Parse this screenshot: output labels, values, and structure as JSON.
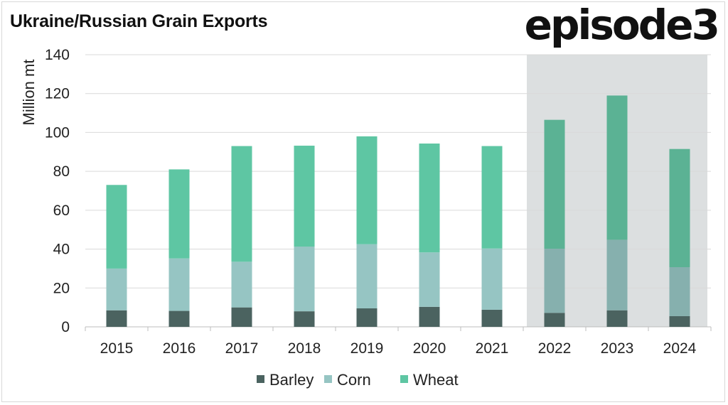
{
  "header": {
    "title": "Ukraine/Russian Grain Exports",
    "brand": "episode3"
  },
  "chart_data": {
    "type": "bar",
    "stacked": true,
    "title": "Ukraine/Russian Grain Exports",
    "ylabel": "Million mt",
    "xlabel": "",
    "ylim": [
      0,
      140
    ],
    "yticks": [
      0,
      20,
      40,
      60,
      80,
      100,
      120,
      140
    ],
    "grid": true,
    "legend_position": "bottom",
    "highlight_categories": [
      "2022",
      "2023",
      "2024"
    ],
    "categories": [
      "2015",
      "2016",
      "2017",
      "2018",
      "2019",
      "2020",
      "2021",
      "2022",
      "2023",
      "2024"
    ],
    "series": [
      {
        "name": "Barley",
        "color": "#4b6360",
        "values": [
          8.5,
          8.2,
          10.0,
          8.0,
          9.5,
          10.3,
          8.8,
          7.2,
          8.5,
          5.5
        ]
      },
      {
        "name": "Corn",
        "color": "#96c5c3",
        "values": [
          21.5,
          27.0,
          23.5,
          33.3,
          33.0,
          28.0,
          31.5,
          33.0,
          36.3,
          25.2
        ]
      },
      {
        "name": "Wheat",
        "color": "#5ec6a3",
        "values": [
          43.0,
          45.8,
          59.5,
          51.9,
          55.5,
          56.0,
          52.7,
          66.3,
          74.2,
          60.8
        ]
      }
    ],
    "highlight_series_colors": [
      "#4b6360",
      "#86b0ae",
      "#5bb294"
    ]
  }
}
